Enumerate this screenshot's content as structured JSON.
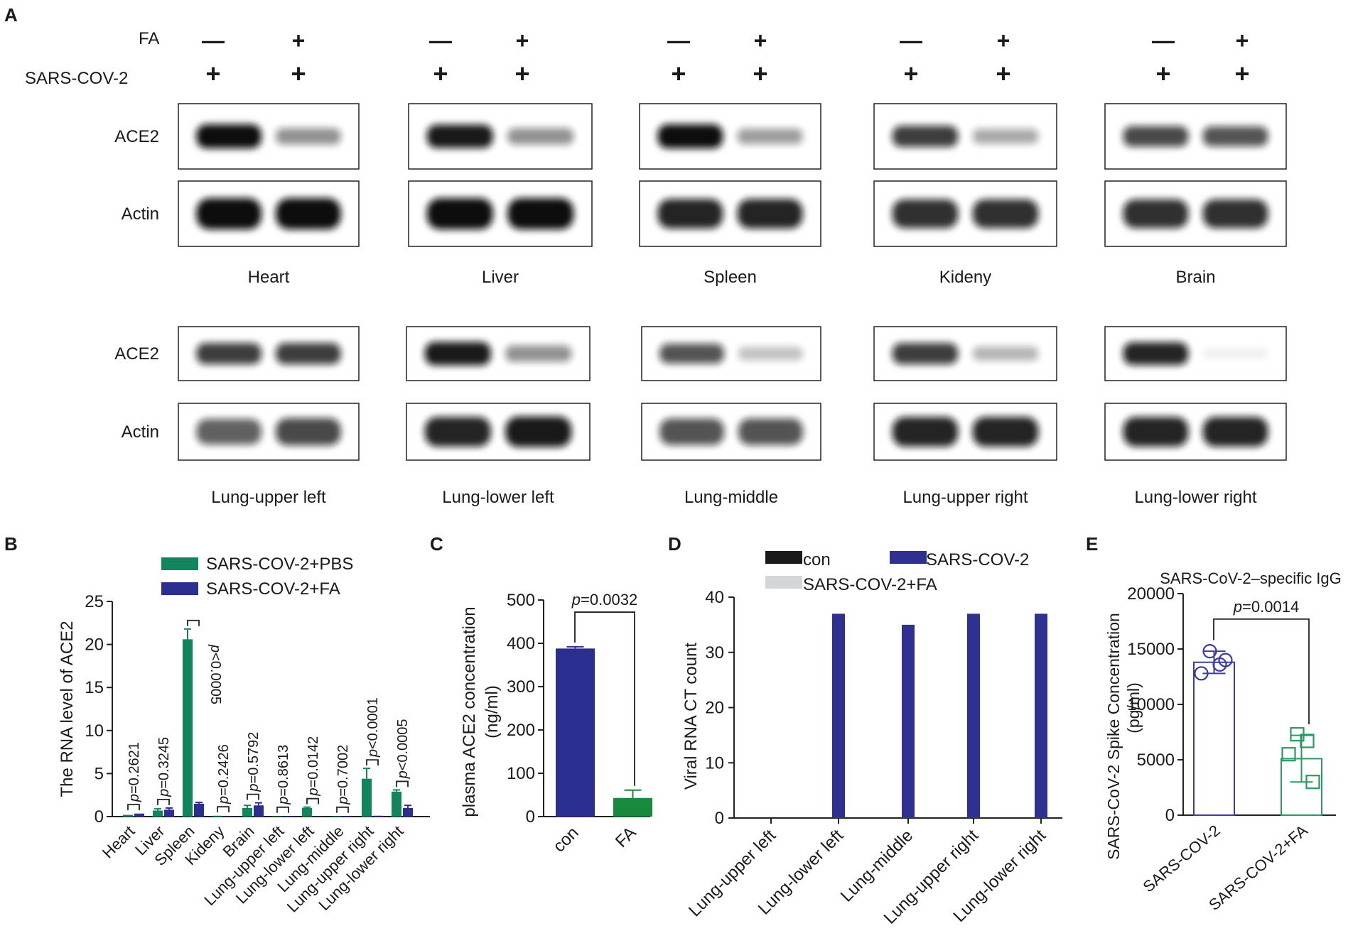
{
  "panel_letters": {
    "a": "A",
    "b": "B",
    "c": "C",
    "d": "D",
    "e": "E"
  },
  "blots": {
    "condition_labels": {
      "fa": "FA",
      "virus": "SARS-COV-2"
    },
    "fa_signs": [
      "—",
      "+"
    ],
    "virus_signs": [
      "+",
      "+"
    ],
    "row_labels": {
      "ace2": "ACE2",
      "actin": "Actin"
    },
    "top_row": [
      {
        "tissue": "Heart",
        "ace2": [
          1.0,
          0.45
        ],
        "actin": [
          1.0,
          1.0
        ]
      },
      {
        "tissue": "Liver",
        "ace2": [
          0.95,
          0.45
        ],
        "actin": [
          1.0,
          1.0
        ]
      },
      {
        "tissue": "Spleen",
        "ace2": [
          1.0,
          0.4
        ],
        "actin": [
          0.9,
          0.9
        ]
      },
      {
        "tissue": "Kideny",
        "ace2": [
          0.8,
          0.35
        ],
        "actin": [
          0.85,
          0.85
        ]
      },
      {
        "tissue": "Brain",
        "ace2": [
          0.75,
          0.7
        ],
        "actin": [
          0.85,
          0.85
        ]
      }
    ],
    "bottom_row": [
      {
        "tissue": "Lung-upper left",
        "ace2": [
          0.8,
          0.8
        ],
        "actin": [
          0.65,
          0.75
        ]
      },
      {
        "tissue": "Lung-lower left",
        "ace2": [
          0.95,
          0.45
        ],
        "actin": [
          0.9,
          0.95
        ]
      },
      {
        "tissue": "Lung-middle",
        "ace2": [
          0.7,
          0.25
        ],
        "actin": [
          0.7,
          0.7
        ]
      },
      {
        "tissue": "Lung-upper right",
        "ace2": [
          0.8,
          0.3
        ],
        "actin": [
          0.9,
          0.9
        ]
      },
      {
        "tissue": "Lung-lower right",
        "ace2": [
          0.9,
          0.05
        ],
        "actin": [
          0.9,
          0.9
        ]
      }
    ]
  },
  "colors": {
    "pbs_green": "#12855c",
    "fa_blue": "#2b2f8f",
    "con_black": "#1a1a1a",
    "sarscov2_blue": "#2e3192",
    "fa_gray": "#d4d5d9",
    "fa_dark_green": "#178a3e",
    "e_blue": "#3b3d9e",
    "e_green": "#2a9a5e"
  },
  "chart_data": [
    {
      "panel": "B",
      "type": "bar",
      "ylabel": "The RNA level of ACE2",
      "ylim": [
        0,
        25
      ],
      "yticks": [
        0,
        5,
        10,
        15,
        20,
        25
      ],
      "categories": [
        "Heart",
        "Liver",
        "Spleen",
        "Kideny",
        "Brain",
        "Lung-upper left",
        "Lung-lower left",
        "Lung-middle",
        "Lung-upper right",
        "Lung-lower right"
      ],
      "series": [
        {
          "name": "SARS-COV-2+PBS",
          "values": [
            0.2,
            0.7,
            20.6,
            0.1,
            1.0,
            0.05,
            1.0,
            0.05,
            4.4,
            2.9
          ],
          "errors": [
            0.05,
            0.2,
            1.2,
            0.05,
            0.3,
            0.05,
            0.1,
            0.05,
            1.2,
            0.2
          ]
        },
        {
          "name": "SARS-COV-2+FA",
          "values": [
            0.35,
            0.8,
            1.5,
            0.05,
            1.3,
            0.05,
            0.05,
            0.05,
            0.1,
            1.0
          ],
          "errors": [
            0.05,
            0.2,
            0.15,
            0.05,
            0.3,
            0.05,
            0.05,
            0.05,
            0.05,
            0.3
          ]
        }
      ],
      "annotations": [
        "p=0.2621",
        "p=0.3245",
        "p<0.0005",
        "p=0.2426",
        "p=0.5792",
        "p=0.8613",
        "p=0.0142",
        "p=0.7002",
        "p<0.0001",
        "p<0.0005"
      ],
      "legend": "top"
    },
    {
      "panel": "C",
      "type": "bar",
      "ylabel": "plasma ACE2 concentration\n(ng/ml)",
      "ylim": [
        0,
        500
      ],
      "yticks": [
        0,
        100,
        200,
        300,
        400,
        500
      ],
      "categories": [
        "con",
        "FA"
      ],
      "values": [
        388,
        43
      ],
      "errors": [
        4,
        18
      ],
      "annotation": "p=0.0032"
    },
    {
      "panel": "D",
      "type": "bar",
      "ylabel": "Viral RNA CT count",
      "ylim": [
        0,
        40
      ],
      "yticks": [
        0,
        10,
        20,
        30,
        40
      ],
      "categories": [
        "Lung-upper left",
        "Lung-lower left",
        "Lung-middle",
        "Lung-upper right",
        "Lung-lower right"
      ],
      "series": [
        {
          "name": "con",
          "values": [
            0,
            0,
            0,
            0,
            0
          ]
        },
        {
          "name": "SARS-COV-2",
          "values": [
            0,
            37,
            35,
            37,
            37
          ]
        },
        {
          "name": "SARS-COV-2+FA",
          "values": [
            0,
            0,
            0,
            0,
            0
          ]
        }
      ],
      "legend": "top"
    },
    {
      "panel": "E",
      "type": "bar",
      "title": "SARS-CoV-2–specific IgG",
      "ylabel": "SARS-CoV-2 Spike Concentration\n(pg/ml)",
      "ylim": [
        0,
        20000
      ],
      "yticks": [
        0,
        5000,
        10000,
        15000,
        20000
      ],
      "categories": [
        "SARS-COV-2",
        "SARS-COV-2+FA"
      ],
      "values": [
        13800,
        5100
      ],
      "errors": [
        1000,
        2100
      ],
      "points": [
        [
          14800,
          13600,
          12800,
          14000
        ],
        [
          7300,
          6700,
          5500,
          3000
        ]
      ],
      "annotation": "p=0.0014"
    }
  ]
}
